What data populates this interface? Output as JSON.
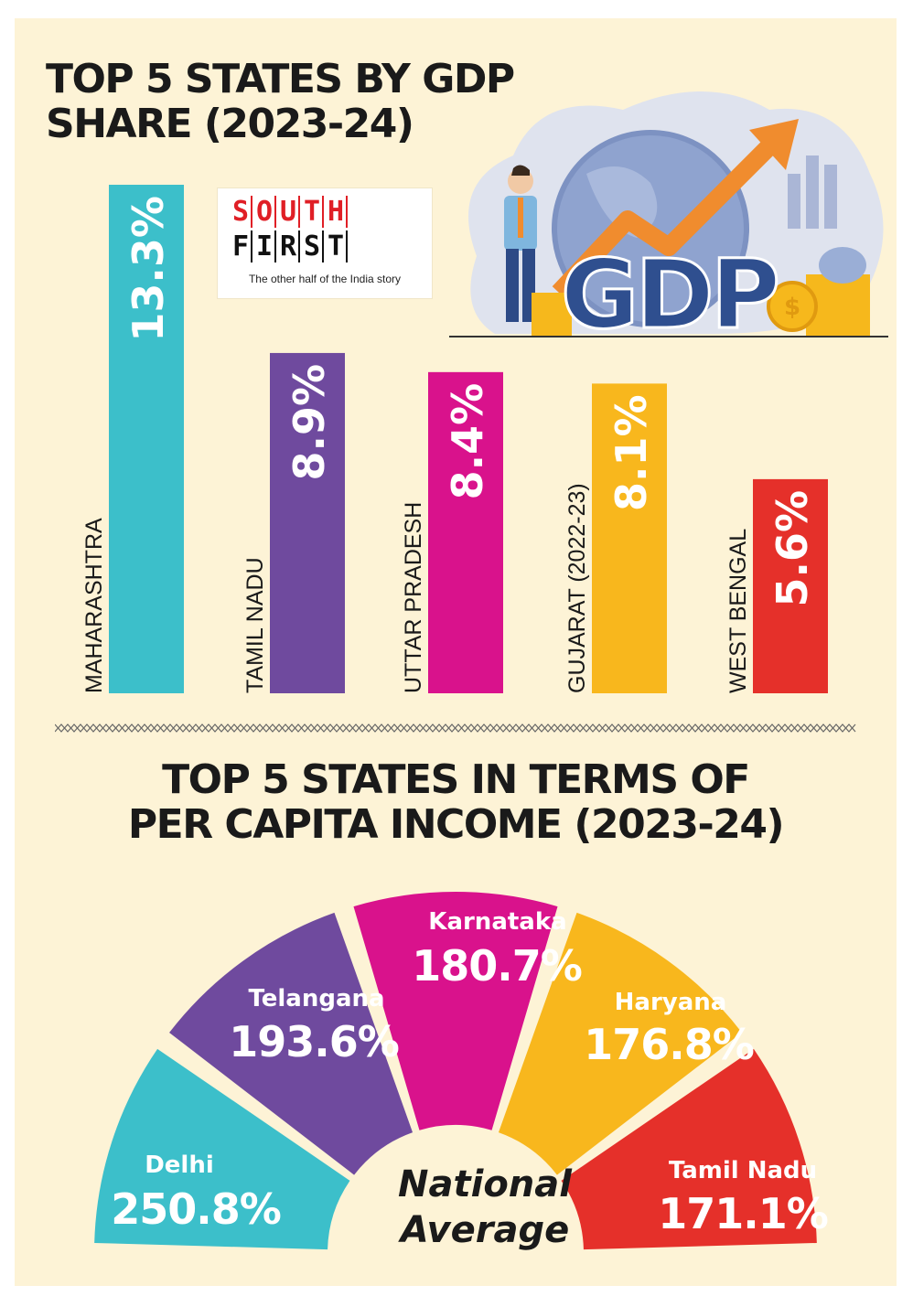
{
  "logo": {
    "line1": "SOUTH",
    "line2": "FIRST",
    "tagline": "The other half of the India story",
    "art_text": "GDP",
    "colors": {
      "red": "#e01f26",
      "black": "#111111"
    }
  },
  "chart_data": [
    {
      "type": "bar",
      "title": "TOP 5 STATES BY GDP SHARE (2023-24)",
      "categories": [
        "MAHARASHTRA",
        "TAMIL NADU",
        "UTTAR PRADESH",
        "GUJARAT (2022-23)",
        "WEST BENGAL"
      ],
      "values": [
        13.3,
        8.9,
        8.4,
        8.1,
        5.6
      ],
      "value_labels": [
        "13.3%",
        "8.9%",
        "8.4%",
        "8.1%",
        "5.6%"
      ],
      "colors": [
        "#3cbfca",
        "#6f4a9e",
        "#d9128c",
        "#f8b71d",
        "#e5302a"
      ],
      "orientation": "vertical bars with rotated labels"
    },
    {
      "type": "pie",
      "subtype": "semicircular gauge",
      "title": "TOP 5 STATES IN TERMS OF PER CAPITA INCOME (2023-24)",
      "center_label": [
        "National",
        "Average"
      ],
      "categories": [
        "Delhi",
        "Telangana",
        "Karnataka",
        "Haryana",
        "Tamil Nadu"
      ],
      "values": [
        250.8,
        193.6,
        180.7,
        176.8,
        171.1
      ],
      "value_labels": [
        "250.8%",
        "193.6%",
        "180.7%",
        "176.8%",
        "171.1%"
      ],
      "colors": [
        "#3cbfca",
        "#6f4a9e",
        "#d9128c",
        "#f8b71d",
        "#e5302a"
      ]
    }
  ]
}
